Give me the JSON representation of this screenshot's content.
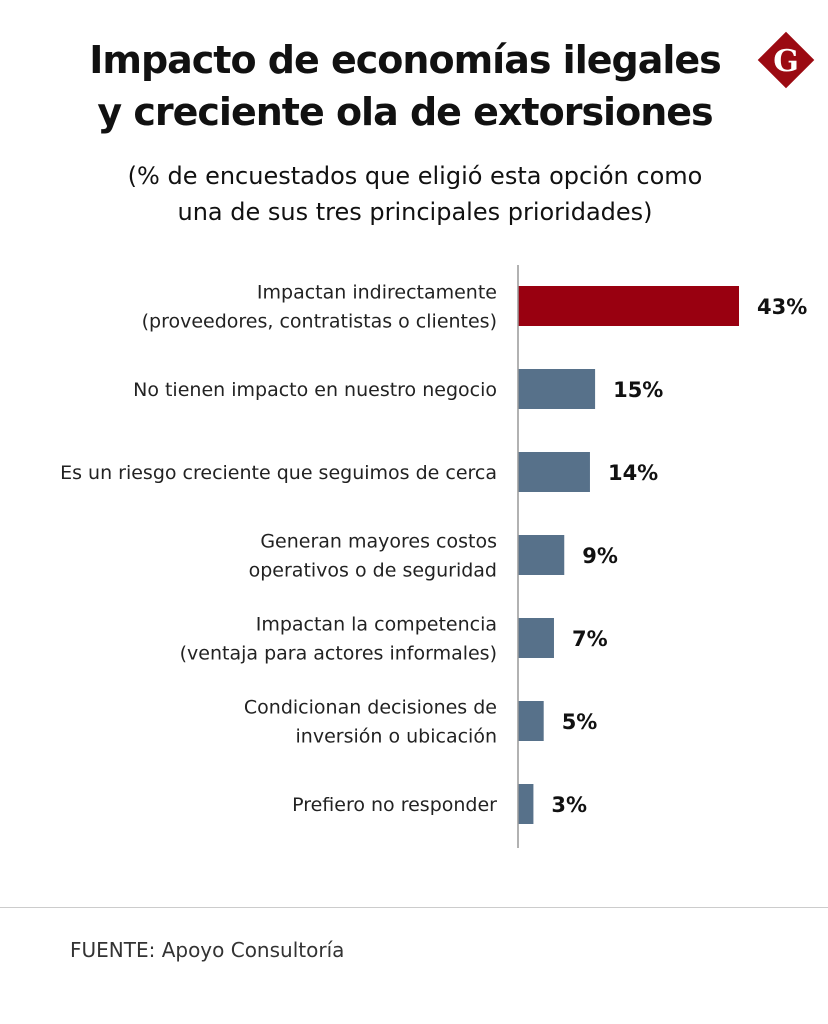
{
  "title_line1": "Impacto de economías ilegales",
  "title_line2": "y creciente ola de extorsiones",
  "subtitle_line1": "(% de encuestados que eligió esta opción como",
  "subtitle_line2": "una de sus tres principales prioridades)",
  "logo": {
    "text": "G",
    "color": "#9b0a12"
  },
  "source": "FUENTE: Apoyo Consultoría",
  "colors": {
    "highlight": "#990010",
    "default": "#57718a",
    "axis": "#999999"
  },
  "chart_data": {
    "type": "bar",
    "orientation": "horizontal",
    "title": "Impacto de economías ilegales y creciente ola de extorsiones",
    "subtitle": "(% de encuestados que eligió esta opción como una de sus tres principales prioridades)",
    "categories": [
      [
        "Impactan indirectamente",
        "(proveedores, contratistas o clientes)"
      ],
      [
        "No tienen impacto en nuestro negocio"
      ],
      [
        "Es un riesgo creciente que seguimos de cerca"
      ],
      [
        "Generan mayores costos",
        "operativos o de seguridad"
      ],
      [
        "Impactan la competencia",
        "(ventaja para actores informales)"
      ],
      [
        "Condicionan decisiones de",
        "inversión o ubicación"
      ],
      [
        "Prefiero no responder"
      ]
    ],
    "values": [
      43,
      15,
      14,
      9,
      7,
      5,
      3
    ],
    "data_labels": [
      "43%",
      "15%",
      "14%",
      "9%",
      "7%",
      "5%",
      "3%"
    ],
    "highlighted": [
      0
    ],
    "xlim": [
      0,
      43
    ],
    "grid": false
  }
}
